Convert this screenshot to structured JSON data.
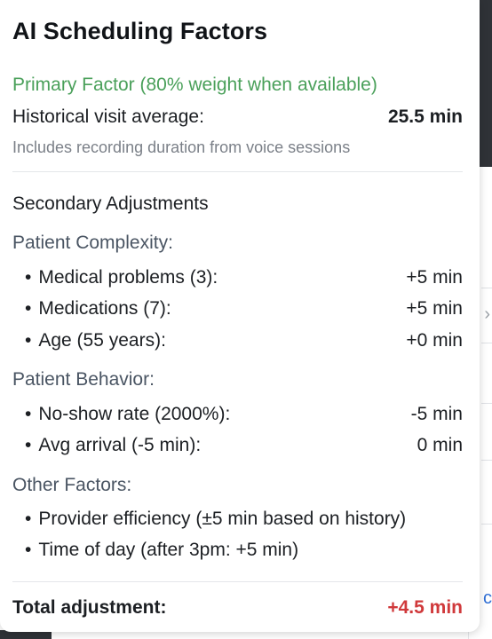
{
  "popover": {
    "title": "AI Scheduling Factors",
    "primary": {
      "heading": "Primary Factor (80% weight when available)",
      "label": "Historical visit average:",
      "value": "25.5 min",
      "note": "Includes recording duration from voice sessions"
    },
    "secondary_heading": "Secondary Adjustments",
    "groups": [
      {
        "heading": "Patient Complexity:",
        "items": [
          {
            "label": "Medical problems (3):",
            "value": "+5 min"
          },
          {
            "label": "Medications (7):",
            "value": "+5 min"
          },
          {
            "label": "Age (55 years):",
            "value": "+0 min"
          }
        ]
      },
      {
        "heading": "Patient Behavior:",
        "items": [
          {
            "label": "No-show rate (2000%):",
            "value": "-5 min"
          },
          {
            "label": "Avg arrival (-5 min):",
            "value": "0 min"
          }
        ]
      },
      {
        "heading": "Other Factors:",
        "items": [
          {
            "label": "Provider efficiency (±5 min based on history)",
            "value": ""
          },
          {
            "label": "Time of day (after 3pm: +5 min)",
            "value": ""
          }
        ]
      }
    ],
    "total": {
      "label": "Total adjustment:",
      "value": "+4.5 min"
    },
    "colors": {
      "primary_green": "#4aa05a",
      "total_red": "#d0393b"
    }
  },
  "background": {
    "chevron_icon": "chevron-right-icon",
    "link_fragment": "c"
  }
}
